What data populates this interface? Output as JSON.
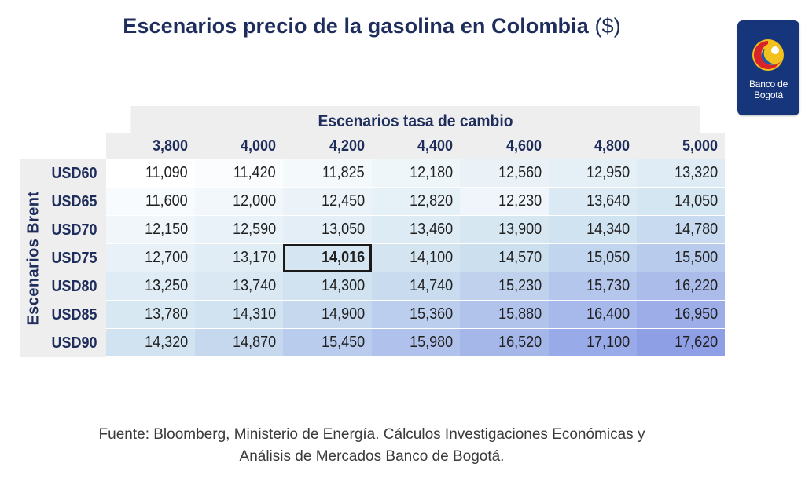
{
  "title": {
    "text": "Escenarios precio de la gasolina en Colombia",
    "unit": "($)"
  },
  "logo": {
    "line1": "Banco de",
    "line2": "Bogotá",
    "icon": "banco-de-bogota-logo"
  },
  "chart_data": {
    "type": "table",
    "column_group_label": "Escenarios tasa de cambio",
    "row_group_label": "Escenarios Brent",
    "columns": [
      "3,800",
      "4,000",
      "4,200",
      "4,400",
      "4,600",
      "4,800",
      "5,000"
    ],
    "rows": [
      {
        "label": "USD60",
        "values": [
          "11,090",
          "11,420",
          "11,825",
          "12,180",
          "12,560",
          "12,950",
          "13,320"
        ]
      },
      {
        "label": "USD65",
        "values": [
          "11,600",
          "12,000",
          "12,450",
          "12,820",
          "12,230",
          "13,640",
          "14,050"
        ]
      },
      {
        "label": "USD70",
        "values": [
          "12,150",
          "12,590",
          "13,050",
          "13,460",
          "13,900",
          "14,340",
          "14,780"
        ]
      },
      {
        "label": "USD75",
        "values": [
          "12,700",
          "13,170",
          "14,016",
          "14,100",
          "14,570",
          "15,050",
          "15,500"
        ]
      },
      {
        "label": "USD80",
        "values": [
          "13,250",
          "13,740",
          "14,300",
          "14,740",
          "15,230",
          "15,730",
          "16,220"
        ]
      },
      {
        "label": "USD85",
        "values": [
          "13,780",
          "14,310",
          "14,900",
          "15,360",
          "15,880",
          "16,400",
          "16,950"
        ]
      },
      {
        "label": "USD90",
        "values": [
          "14,320",
          "14,870",
          "15,450",
          "15,980",
          "16,520",
          "17,100",
          "17,620"
        ]
      }
    ],
    "highlighted_cell": {
      "row": "USD75",
      "column": "4,200"
    }
  },
  "colors": {
    "title": "#1f2d5c",
    "header_bg": "#eeeeee",
    "highlight_border": "#1a1a1a",
    "logo_bg": "#17357a",
    "heat_low": "#ffffff",
    "heat_mid": "#d0e3f0",
    "heat_high": "#8f9fe6"
  },
  "source": {
    "line1": "Fuente: Bloomberg, Ministerio de Energía. Cálculos Investigaciones Económicas y",
    "line2": "Análisis de Mercados Banco de Bogotá."
  }
}
